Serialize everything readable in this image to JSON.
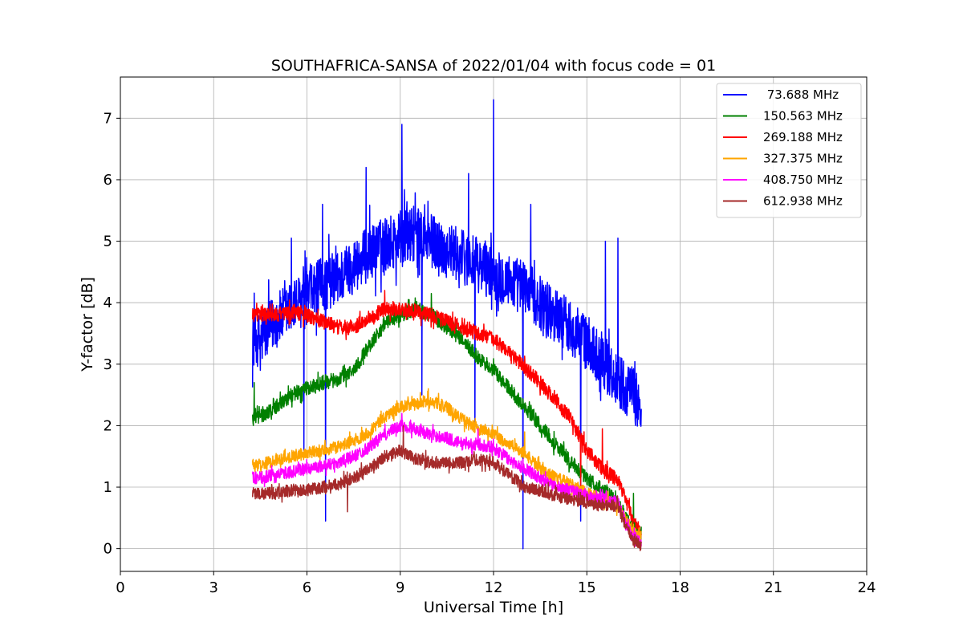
{
  "chart_data": {
    "type": "line",
    "title": "SOUTHAFRICA-SANSA of 2022/01/04 with focus code = 01",
    "xlabel": "Universal Time [h]",
    "ylabel": "Y-factor [dB]",
    "xlim": [
      0,
      24
    ],
    "ylim": [
      -0.37,
      7.67
    ],
    "xticks": [
      0,
      3,
      6,
      9,
      12,
      15,
      18,
      21,
      24
    ],
    "yticks": [
      0,
      1,
      2,
      3,
      4,
      5,
      6,
      7
    ],
    "grid": true,
    "legend_position": "top-right",
    "series": [
      {
        "name": " 73.688 MHz",
        "color": "#0000ff",
        "noise": 0.45,
        "x": [
          4.25,
          4.5,
          5.0,
          5.5,
          6.0,
          6.5,
          7.0,
          7.5,
          8.0,
          8.5,
          9.0,
          9.5,
          10.0,
          10.5,
          11.0,
          11.5,
          12.0,
          12.5,
          13.0,
          13.5,
          14.0,
          14.5,
          15.0,
          15.5,
          16.0,
          16.5,
          16.75
        ],
        "y": [
          3.4,
          3.4,
          3.7,
          3.9,
          4.1,
          4.3,
          4.4,
          4.6,
          4.8,
          4.95,
          5.05,
          5.1,
          5.0,
          4.85,
          4.75,
          4.6,
          4.5,
          4.35,
          4.25,
          4.0,
          3.8,
          3.6,
          3.35,
          3.05,
          2.75,
          2.5,
          2.3
        ],
        "spikes": [
          [
            5.5,
            5.05
          ],
          [
            6.5,
            5.6
          ],
          [
            7.9,
            6.2
          ],
          [
            9.05,
            6.9
          ],
          [
            11.2,
            6.1
          ],
          [
            12.0,
            7.3
          ],
          [
            13.2,
            5.6
          ],
          [
            15.6,
            5.0
          ],
          [
            16.0,
            5.05
          ],
          [
            4.5,
            2.9
          ],
          [
            5.9,
            1.6
          ],
          [
            6.6,
            0.45
          ],
          [
            9.7,
            2.5
          ],
          [
            11.4,
            1.9
          ],
          [
            12.95,
            0.0
          ],
          [
            14.8,
            0.45
          ]
        ]
      },
      {
        "name": "150.563 MHz",
        "color": "#008000",
        "noise": 0.12,
        "x": [
          4.25,
          4.5,
          5.0,
          5.5,
          6.0,
          6.5,
          7.0,
          7.5,
          8.0,
          8.5,
          9.0,
          9.5,
          10.0,
          10.5,
          11.0,
          11.5,
          12.0,
          12.5,
          13.0,
          13.5,
          14.0,
          14.5,
          15.0,
          15.5,
          16.0,
          16.25,
          16.5,
          16.75
        ],
        "y": [
          2.1,
          2.15,
          2.3,
          2.5,
          2.6,
          2.7,
          2.75,
          2.9,
          3.3,
          3.65,
          3.8,
          3.9,
          3.8,
          3.6,
          3.4,
          3.1,
          2.9,
          2.6,
          2.3,
          2.0,
          1.7,
          1.4,
          1.15,
          0.95,
          0.75,
          0.5,
          0.35,
          0.25
        ],
        "spikes": [
          [
            4.3,
            2.7
          ],
          [
            10.0,
            4.15
          ],
          [
            16.5,
            0.9
          ]
        ]
      },
      {
        "name": "269.188 MHz",
        "color": "#ff0000",
        "noise": 0.12,
        "x": [
          4.25,
          4.5,
          5.0,
          5.5,
          6.0,
          6.5,
          7.0,
          7.5,
          8.0,
          8.5,
          9.0,
          9.5,
          10.0,
          10.5,
          11.0,
          11.5,
          12.0,
          12.5,
          13.0,
          13.5,
          14.0,
          14.5,
          15.0,
          15.5,
          16.0,
          16.25,
          16.5,
          16.75
        ],
        "y": [
          3.8,
          3.8,
          3.8,
          3.85,
          3.8,
          3.7,
          3.6,
          3.6,
          3.75,
          3.9,
          3.9,
          3.85,
          3.8,
          3.7,
          3.6,
          3.5,
          3.4,
          3.2,
          2.95,
          2.7,
          2.4,
          2.1,
          1.6,
          1.3,
          1.1,
          0.8,
          0.45,
          0.25
        ],
        "spikes": [
          [
            8.5,
            4.2
          ],
          [
            15.5,
            1.95
          ],
          [
            14.8,
            1.0
          ]
        ]
      },
      {
        "name": "327.375 MHz",
        "color": "#ffa500",
        "noise": 0.1,
        "x": [
          4.25,
          4.5,
          5.0,
          5.5,
          6.0,
          6.5,
          7.0,
          7.5,
          8.0,
          8.5,
          9.0,
          9.5,
          10.0,
          10.5,
          11.0,
          11.5,
          12.0,
          12.5,
          13.0,
          13.5,
          14.0,
          14.5,
          15.0,
          15.5,
          16.0,
          16.25,
          16.5,
          16.75
        ],
        "y": [
          1.35,
          1.35,
          1.45,
          1.5,
          1.55,
          1.6,
          1.65,
          1.75,
          1.9,
          2.15,
          2.3,
          2.35,
          2.4,
          2.3,
          2.1,
          1.95,
          1.85,
          1.7,
          1.55,
          1.3,
          1.15,
          1.05,
          0.9,
          0.8,
          0.7,
          0.45,
          0.3,
          0.2
        ],
        "spikes": [
          [
            13.0,
            1.9
          ],
          [
            9.9,
            2.6
          ]
        ]
      },
      {
        "name": "408.750 MHz",
        "color": "#ff00ff",
        "noise": 0.1,
        "x": [
          4.25,
          4.5,
          5.0,
          5.5,
          6.0,
          6.5,
          7.0,
          7.5,
          8.0,
          8.5,
          9.0,
          9.5,
          10.0,
          10.5,
          11.0,
          11.5,
          12.0,
          12.5,
          13.0,
          13.5,
          14.0,
          14.5,
          15.0,
          15.5,
          16.0,
          16.25,
          16.5,
          16.75
        ],
        "y": [
          1.15,
          1.15,
          1.2,
          1.25,
          1.3,
          1.35,
          1.4,
          1.5,
          1.65,
          1.85,
          2.0,
          1.95,
          1.85,
          1.8,
          1.7,
          1.7,
          1.65,
          1.45,
          1.3,
          1.15,
          1.0,
          0.95,
          0.85,
          0.8,
          0.75,
          0.4,
          0.2,
          0.1
        ],
        "spikes": [
          [
            9.05,
            2.2
          ],
          [
            11.5,
            1.95
          ]
        ]
      },
      {
        "name": "612.938 MHz",
        "color": "#a52a2a",
        "noise": 0.1,
        "x": [
          4.25,
          4.5,
          5.0,
          5.5,
          6.0,
          6.5,
          7.0,
          7.5,
          8.0,
          8.5,
          9.0,
          9.5,
          10.0,
          10.5,
          11.0,
          11.5,
          12.0,
          12.5,
          13.0,
          13.5,
          14.0,
          14.5,
          15.0,
          15.5,
          16.0,
          16.25,
          16.5,
          16.75
        ],
        "y": [
          0.9,
          0.9,
          0.9,
          0.95,
          0.95,
          1.0,
          1.05,
          1.15,
          1.3,
          1.5,
          1.6,
          1.45,
          1.4,
          1.4,
          1.4,
          1.45,
          1.4,
          1.2,
          1.0,
          0.95,
          0.85,
          0.8,
          0.75,
          0.7,
          0.7,
          0.35,
          0.15,
          0.05
        ],
        "spikes": [
          [
            9.1,
            2.0
          ],
          [
            7.3,
            0.6
          ]
        ]
      }
    ]
  }
}
